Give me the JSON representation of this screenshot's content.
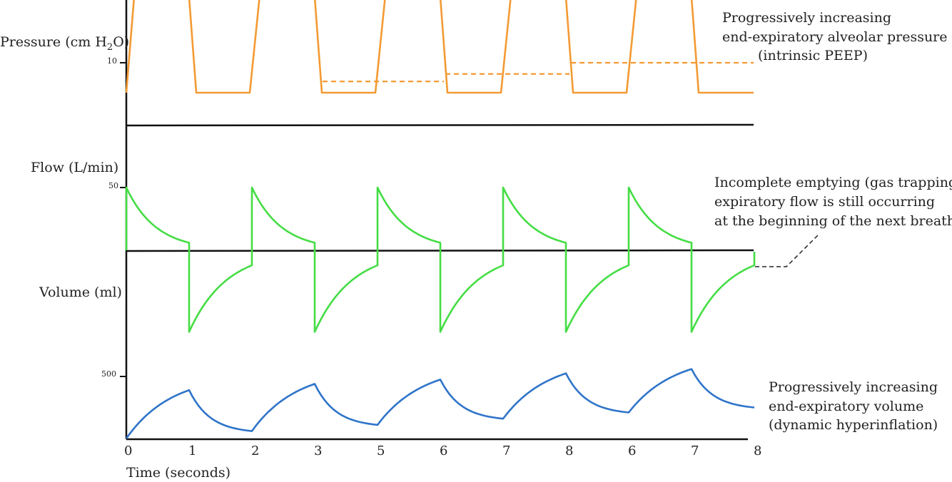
{
  "chart_data": {
    "type": "line",
    "x_axis": {
      "label": "Time (seconds)",
      "tick_labels": [
        "0",
        "1",
        "2",
        "3",
        "5",
        "6",
        "7",
        "8",
        "6",
        "7",
        "8"
      ]
    },
    "panels": [
      {
        "label_prefix": "Pressure (cm H",
        "label_subscript": "2",
        "label_suffix": "O)",
        "ticks": [
          {
            "value": 10,
            "label": "10"
          }
        ],
        "color": "#f39a33",
        "baseline": 6,
        "peak": 20,
        "breath_count": 5,
        "intrinsic_peep_levels": [
          7.5,
          8.5,
          10
        ],
        "annotation": [
          "Progressively increasing",
          "end-expiratory alveolar pressure",
          "(intrinsic PEEP)"
        ]
      },
      {
        "label": "Flow (L/min)",
        "ticks": [
          {
            "value": 50,
            "label": "50"
          }
        ],
        "color": "#44dd44",
        "inspiratory_start": 50,
        "inspiratory_end": 6,
        "expiratory_peak": -65,
        "expiratory_end": -12,
        "annotation": [
          "Incomplete emptying (gas trapping):",
          "expiratory flow is still occurring",
          "at the beginning of the next breath"
        ]
      },
      {
        "label": "Volume (ml)",
        "ticks": [
          {
            "value": 500,
            "label": "500"
          }
        ],
        "color": "#2f74c9",
        "end_inspiratory": [
          390,
          440,
          475,
          525,
          560
        ],
        "end_expiratory": [
          0,
          60,
          110,
          160,
          210,
          250
        ],
        "annotation": [
          "Progressively increasing",
          "end-expiratory volume",
          "(dynamic hyperinflation)"
        ]
      }
    ]
  }
}
